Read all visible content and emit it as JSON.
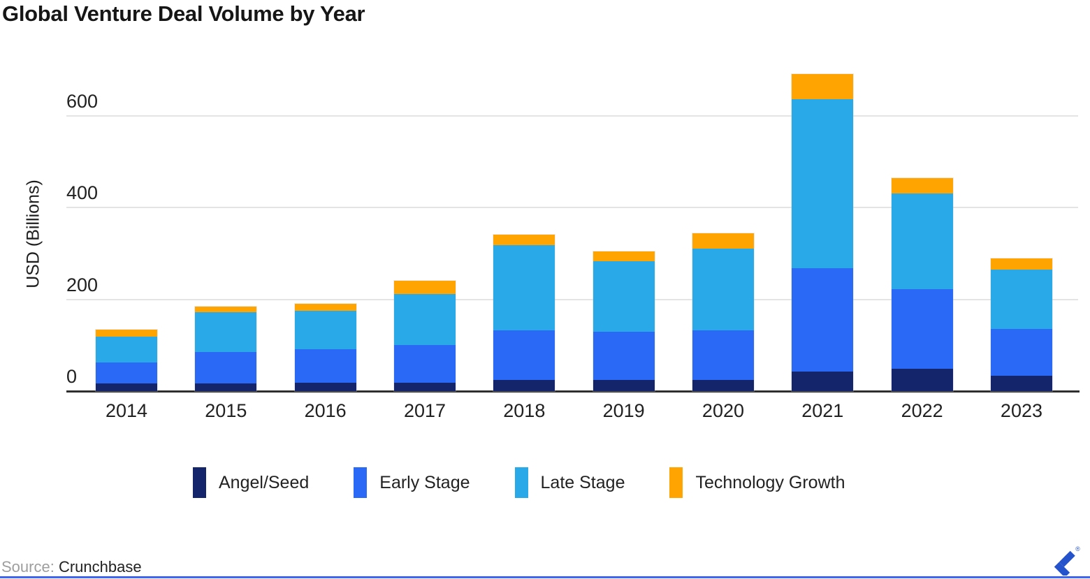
{
  "title": "Global Venture Deal Volume by Year",
  "y_axis": {
    "label": "USD (Billions)",
    "ticks": [
      0,
      200,
      400,
      600
    ]
  },
  "x_axis": {
    "categories": [
      "2014",
      "2015",
      "2016",
      "2017",
      "2018",
      "2019",
      "2020",
      "2021",
      "2022",
      "2023"
    ]
  },
  "source": {
    "prefix": "Source:",
    "name": "Crunchbase"
  },
  "brand": {
    "logo": "toptal-logo",
    "registered_mark": "®"
  },
  "colors": {
    "brand_blue": "#2553CB",
    "accent_line": "#3E66F3",
    "grid": "#E4E4E4",
    "axis": "#2F2F2F"
  },
  "chart_data": {
    "type": "bar",
    "stacked": true,
    "title": "Global Venture Deal Volume by Year",
    "xlabel": "",
    "ylabel": "USD (Billions)",
    "ylim": [
      0,
      700
    ],
    "gridlines": [
      200,
      400,
      600
    ],
    "grid": true,
    "legend_position": "bottom",
    "categories": [
      "2014",
      "2015",
      "2016",
      "2017",
      "2018",
      "2019",
      "2020",
      "2021",
      "2022",
      "2023"
    ],
    "series": [
      {
        "name": "Angel/Seed",
        "color": "#15256B",
        "values": [
          16,
          17,
          18,
          18,
          24,
          25,
          25,
          43,
          48,
          33
        ]
      },
      {
        "name": "Early Stage",
        "color": "#2969F6",
        "values": [
          47,
          68,
          74,
          82,
          109,
          105,
          108,
          225,
          175,
          102
        ]
      },
      {
        "name": "Late Stage",
        "color": "#29A9E8",
        "values": [
          56,
          87,
          83,
          112,
          185,
          153,
          178,
          369,
          208,
          130
        ]
      },
      {
        "name": "Technology Growth",
        "color": "#FFA400",
        "values": [
          15,
          12,
          15,
          29,
          23,
          21,
          33,
          55,
          33,
          24
        ]
      }
    ],
    "totals": [
      134,
      184,
      190,
      241,
      341,
      304,
      344,
      692,
      464,
      289
    ]
  }
}
